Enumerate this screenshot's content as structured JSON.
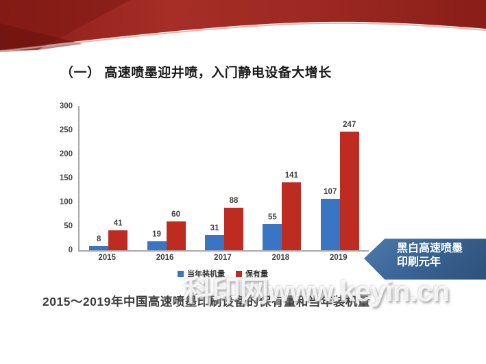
{
  "slide": {
    "title": "（一） 高速喷墨迎井喷，入门静电设备大增长",
    "caption": "2015～2019年中国高速喷墨印刷设备的保有量和当年装机量",
    "callout": {
      "line1": "黑白高速喷墨",
      "line2": "印刷元年"
    },
    "watermark": "科印网www.keyin.cn"
  },
  "colors": {
    "banner_red_dark": "#8C1E19",
    "banner_red_mid": "#A62E26",
    "callout_blue": "#3A6595",
    "bar_blue": "#3A75C4",
    "bar_red": "#BE2B20",
    "axis_gray": "#A9A9A9"
  },
  "chart_data": {
    "type": "bar",
    "title": "",
    "xlabel": "",
    "ylabel": "",
    "categories": [
      "2015",
      "2016",
      "2017",
      "2018",
      "2019"
    ],
    "series": [
      {
        "name": "当年装机量",
        "color": "#3A75C4",
        "values": [
          8,
          19,
          31,
          55,
          107
        ]
      },
      {
        "name": "保有量",
        "color": "#BE2B20",
        "values": [
          41,
          60,
          88,
          141,
          247
        ]
      }
    ],
    "ylim": [
      0,
      300
    ],
    "yticks": [
      0,
      50,
      100,
      150,
      200,
      250,
      300
    ],
    "grid": false,
    "legend_position": "bottom",
    "value_labels": true
  }
}
